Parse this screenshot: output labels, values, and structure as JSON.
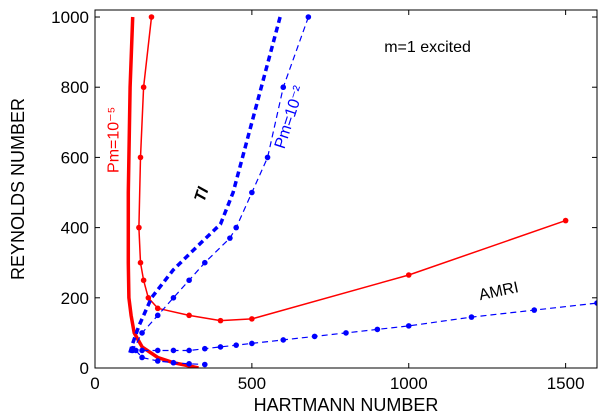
{
  "chart_data": {
    "type": "line",
    "xlabel": "HARTMANN NUMBER",
    "ylabel": "REYNOLDS NUMBER",
    "xlim": [
      0,
      1600
    ],
    "ylim": [
      0,
      1020
    ],
    "x_ticks": [
      "0",
      "500",
      "1000",
      "1500"
    ],
    "y_ticks": [
      "0",
      "200",
      "400",
      "600",
      "800",
      "1000"
    ],
    "grid": false,
    "legend": "none",
    "series": [
      {
        "name": "Pm=10⁻⁵",
        "color": "#ff0000",
        "style": "solid-thick",
        "markers": false,
        "points": [
          [
            120,
            1000
          ],
          [
            116,
            900
          ],
          [
            112,
            800
          ],
          [
            110,
            700
          ],
          [
            108,
            600
          ],
          [
            106,
            500
          ],
          [
            106,
            400
          ],
          [
            106,
            300
          ],
          [
            108,
            200
          ],
          [
            115,
            150
          ],
          [
            125,
            100
          ],
          [
            150,
            60
          ],
          [
            200,
            30
          ],
          [
            250,
            15
          ],
          [
            300,
            6
          ],
          [
            330,
            0
          ]
        ]
      },
      {
        "name": "",
        "color": "#ff0000",
        "style": "solid-thin",
        "markers": true,
        "points": [
          [
            180,
            1000
          ],
          [
            155,
            800
          ],
          [
            145,
            600
          ],
          [
            140,
            400
          ],
          [
            145,
            300
          ],
          [
            155,
            250
          ],
          [
            170,
            200
          ],
          [
            200,
            170
          ],
          [
            300,
            150
          ],
          [
            400,
            135
          ],
          [
            500,
            140
          ],
          [
            1000,
            265
          ],
          [
            1500,
            420
          ]
        ]
      },
      {
        "name": "TI",
        "color": "#0000ff",
        "style": "dashed-thick",
        "markers": false,
        "points": [
          [
            590,
            1000
          ],
          [
            560,
            900
          ],
          [
            530,
            800
          ],
          [
            500,
            700
          ],
          [
            470,
            600
          ],
          [
            440,
            500
          ],
          [
            400,
            410
          ],
          [
            330,
            350
          ],
          [
            250,
            280
          ],
          [
            180,
            200
          ],
          [
            140,
            120
          ],
          [
            120,
            70
          ],
          [
            110,
            40
          ]
        ]
      },
      {
        "name": "Pm=10⁻²",
        "color": "#0000ff",
        "style": "dashed-thin",
        "markers": true,
        "points": [
          [
            680,
            1000
          ],
          [
            600,
            800
          ],
          [
            550,
            600
          ],
          [
            500,
            500
          ],
          [
            450,
            400
          ],
          [
            430,
            370
          ],
          [
            350,
            300
          ],
          [
            300,
            250
          ],
          [
            250,
            200
          ],
          [
            200,
            150
          ],
          [
            150,
            100
          ],
          [
            120,
            50
          ]
        ]
      },
      {
        "name": "AMRI",
        "color": "#0000ff",
        "style": "dashed-thin",
        "markers": true,
        "points": [
          [
            120,
            55
          ],
          [
            150,
            50
          ],
          [
            200,
            50
          ],
          [
            250,
            50
          ],
          [
            300,
            50
          ],
          [
            350,
            55
          ],
          [
            400,
            60
          ],
          [
            450,
            65
          ],
          [
            500,
            70
          ],
          [
            600,
            80
          ],
          [
            700,
            90
          ],
          [
            800,
            100
          ],
          [
            900,
            110
          ],
          [
            1000,
            120
          ],
          [
            1200,
            145
          ],
          [
            1400,
            165
          ],
          [
            1600,
            185
          ]
        ]
      },
      {
        "name": "",
        "color": "#0000ff",
        "style": "dashed-thin",
        "markers": true,
        "points": [
          [
            130,
            50
          ],
          [
            150,
            30
          ],
          [
            200,
            20
          ],
          [
            250,
            15
          ],
          [
            300,
            12
          ],
          [
            350,
            10
          ]
        ]
      }
    ],
    "annotations": [
      {
        "text": "m=1 excited",
        "x": 1060,
        "y": 900,
        "color": "#000000",
        "rotate": 0
      },
      {
        "text": "Pm=10⁻⁵",
        "x": 75,
        "y": 650,
        "color": "#ff0000",
        "rotate": -90
      },
      {
        "text": "Pm=10⁻²",
        "x": 635,
        "y": 710,
        "color": "#0000ff",
        "rotate": -72
      },
      {
        "text": "TI",
        "x": 355,
        "y": 490,
        "color": "#000000",
        "rotate": -72
      },
      {
        "text": "AMRI",
        "x": 1290,
        "y": 205,
        "color": "#000000",
        "rotate": -12
      }
    ]
  }
}
